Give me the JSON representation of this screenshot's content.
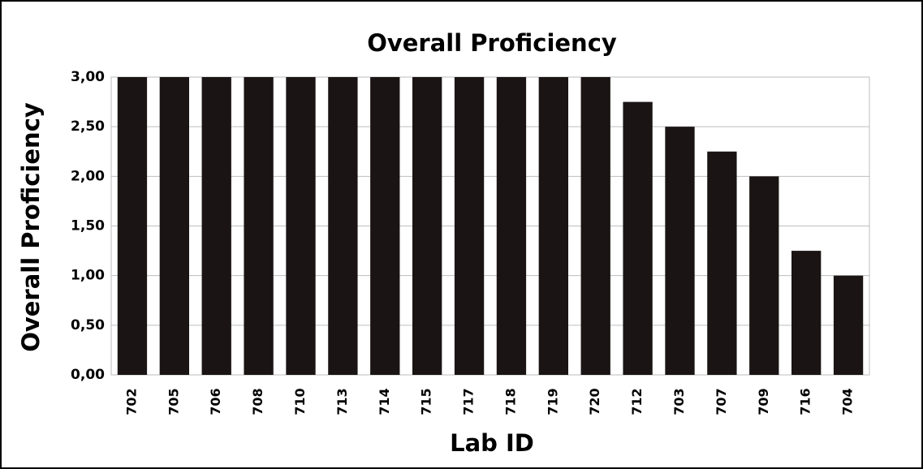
{
  "chart_data": {
    "type": "bar",
    "title": "Overall Proficiency",
    "x_label": "Lab ID",
    "y_label": "Overall Proficiency",
    "categories": [
      "702",
      "705",
      "706",
      "708",
      "710",
      "713",
      "714",
      "715",
      "717",
      "718",
      "719",
      "720",
      "712",
      "703",
      "707",
      "709",
      "716",
      "704"
    ],
    "values": [
      3,
      3,
      3,
      3,
      3,
      3,
      3,
      3,
      3,
      3,
      3,
      3,
      2.75,
      2.5,
      2.25,
      2,
      1.25,
      1
    ],
    "color": "#1a1414",
    "ylim": [
      0,
      3
    ],
    "yticks": [
      {
        "value": 0,
        "label": "0,00"
      },
      {
        "value": 0.5,
        "label": "0,50"
      },
      {
        "value": 1,
        "label": "1,00"
      },
      {
        "value": 1.5,
        "label": "1,50"
      },
      {
        "value": 2,
        "label": "2,00"
      },
      {
        "value": 2.5,
        "label": "2,50"
      },
      {
        "value": 3,
        "label": "3,00"
      }
    ],
    "grid": true
  }
}
